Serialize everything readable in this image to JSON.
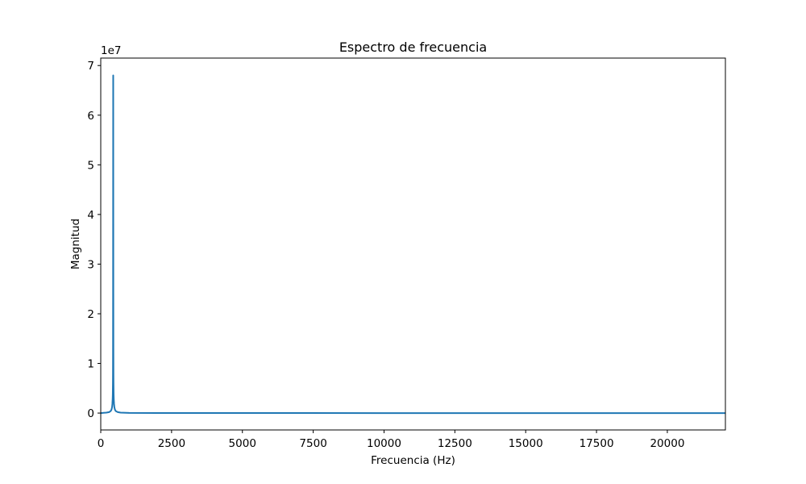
{
  "chart_data": {
    "type": "line",
    "title": "Espectro de frecuencia",
    "xlabel": "Frecuencia (Hz)",
    "ylabel": "Magnitud",
    "y_offset_label": "1e7",
    "xlim": [
      0,
      22050
    ],
    "ylim": [
      -3400000,
      71500000
    ],
    "x_ticks": [
      0,
      2500,
      5000,
      7500,
      10000,
      12500,
      15000,
      17500,
      20000
    ],
    "x_tick_labels": [
      "0",
      "2500",
      "5000",
      "7500",
      "10000",
      "12500",
      "15000",
      "17500",
      "20000"
    ],
    "y_ticks": [
      0,
      10000000,
      20000000,
      30000000,
      40000000,
      50000000,
      60000000,
      70000000
    ],
    "y_tick_labels": [
      "0",
      "1",
      "2",
      "3",
      "4",
      "5",
      "6",
      "7"
    ],
    "grid": false,
    "series": [
      {
        "color": "#1f77b4",
        "x": [
          0,
          200,
          300,
          350,
          380,
          400,
          410,
          420,
          425,
          430,
          432,
          434,
          436,
          438,
          440,
          442,
          444,
          446,
          448,
          450,
          455,
          460,
          470,
          480,
          500,
          530,
          600,
          700,
          1000,
          2000,
          5000,
          10000,
          15000,
          22050
        ],
        "y": [
          0,
          100000,
          200000,
          400000,
          700000,
          1200000,
          1800000,
          2800000,
          3800000,
          6000000,
          8000000,
          13000000,
          24000000,
          45000000,
          68000000,
          45000000,
          24000000,
          13000000,
          8000000,
          6000000,
          3800000,
          2800000,
          1800000,
          1200000,
          700000,
          400000,
          200000,
          100000,
          40000,
          10000,
          3000,
          1000,
          500,
          0
        ]
      }
    ]
  }
}
